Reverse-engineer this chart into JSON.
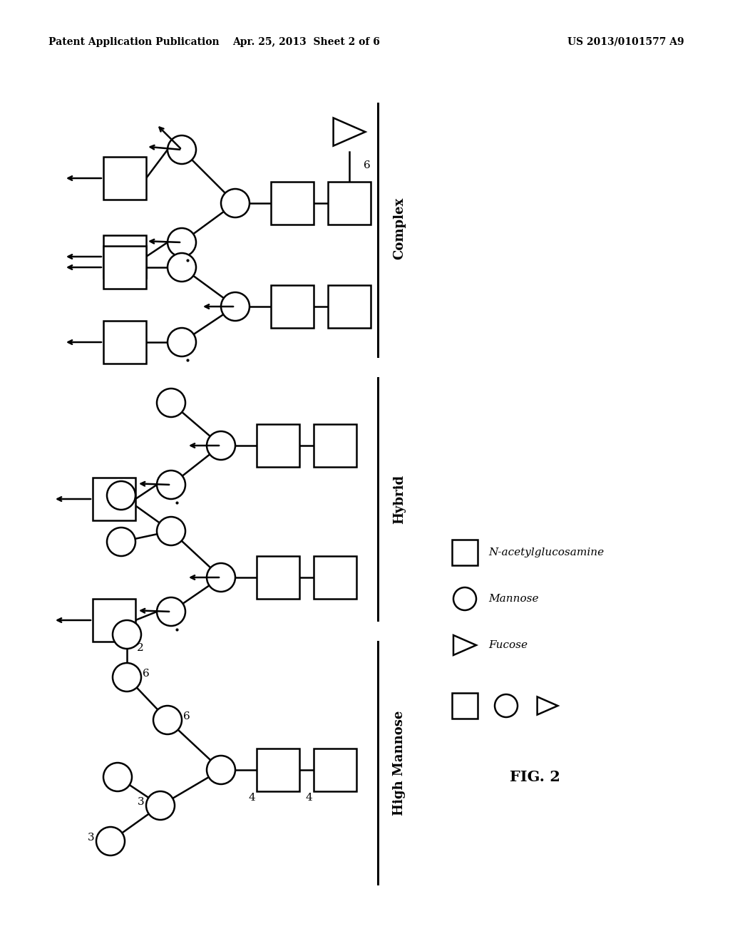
{
  "background_color": "#ffffff",
  "header_left": "Patent Application Publication",
  "header_mid": "Apr. 25, 2013  Sheet 2 of 6",
  "header_right": "US 2013/0101577 A9",
  "fig_label": "FIG. 2",
  "section_labels": [
    "Complex",
    "Hybrid",
    "High Mannose"
  ],
  "legend_items": [
    {
      "label": "N-acetylglucosamine",
      "shape": "square"
    },
    {
      "label": "Mannose",
      "shape": "circle"
    },
    {
      "label": "Fucose",
      "shape": "triangle"
    }
  ]
}
